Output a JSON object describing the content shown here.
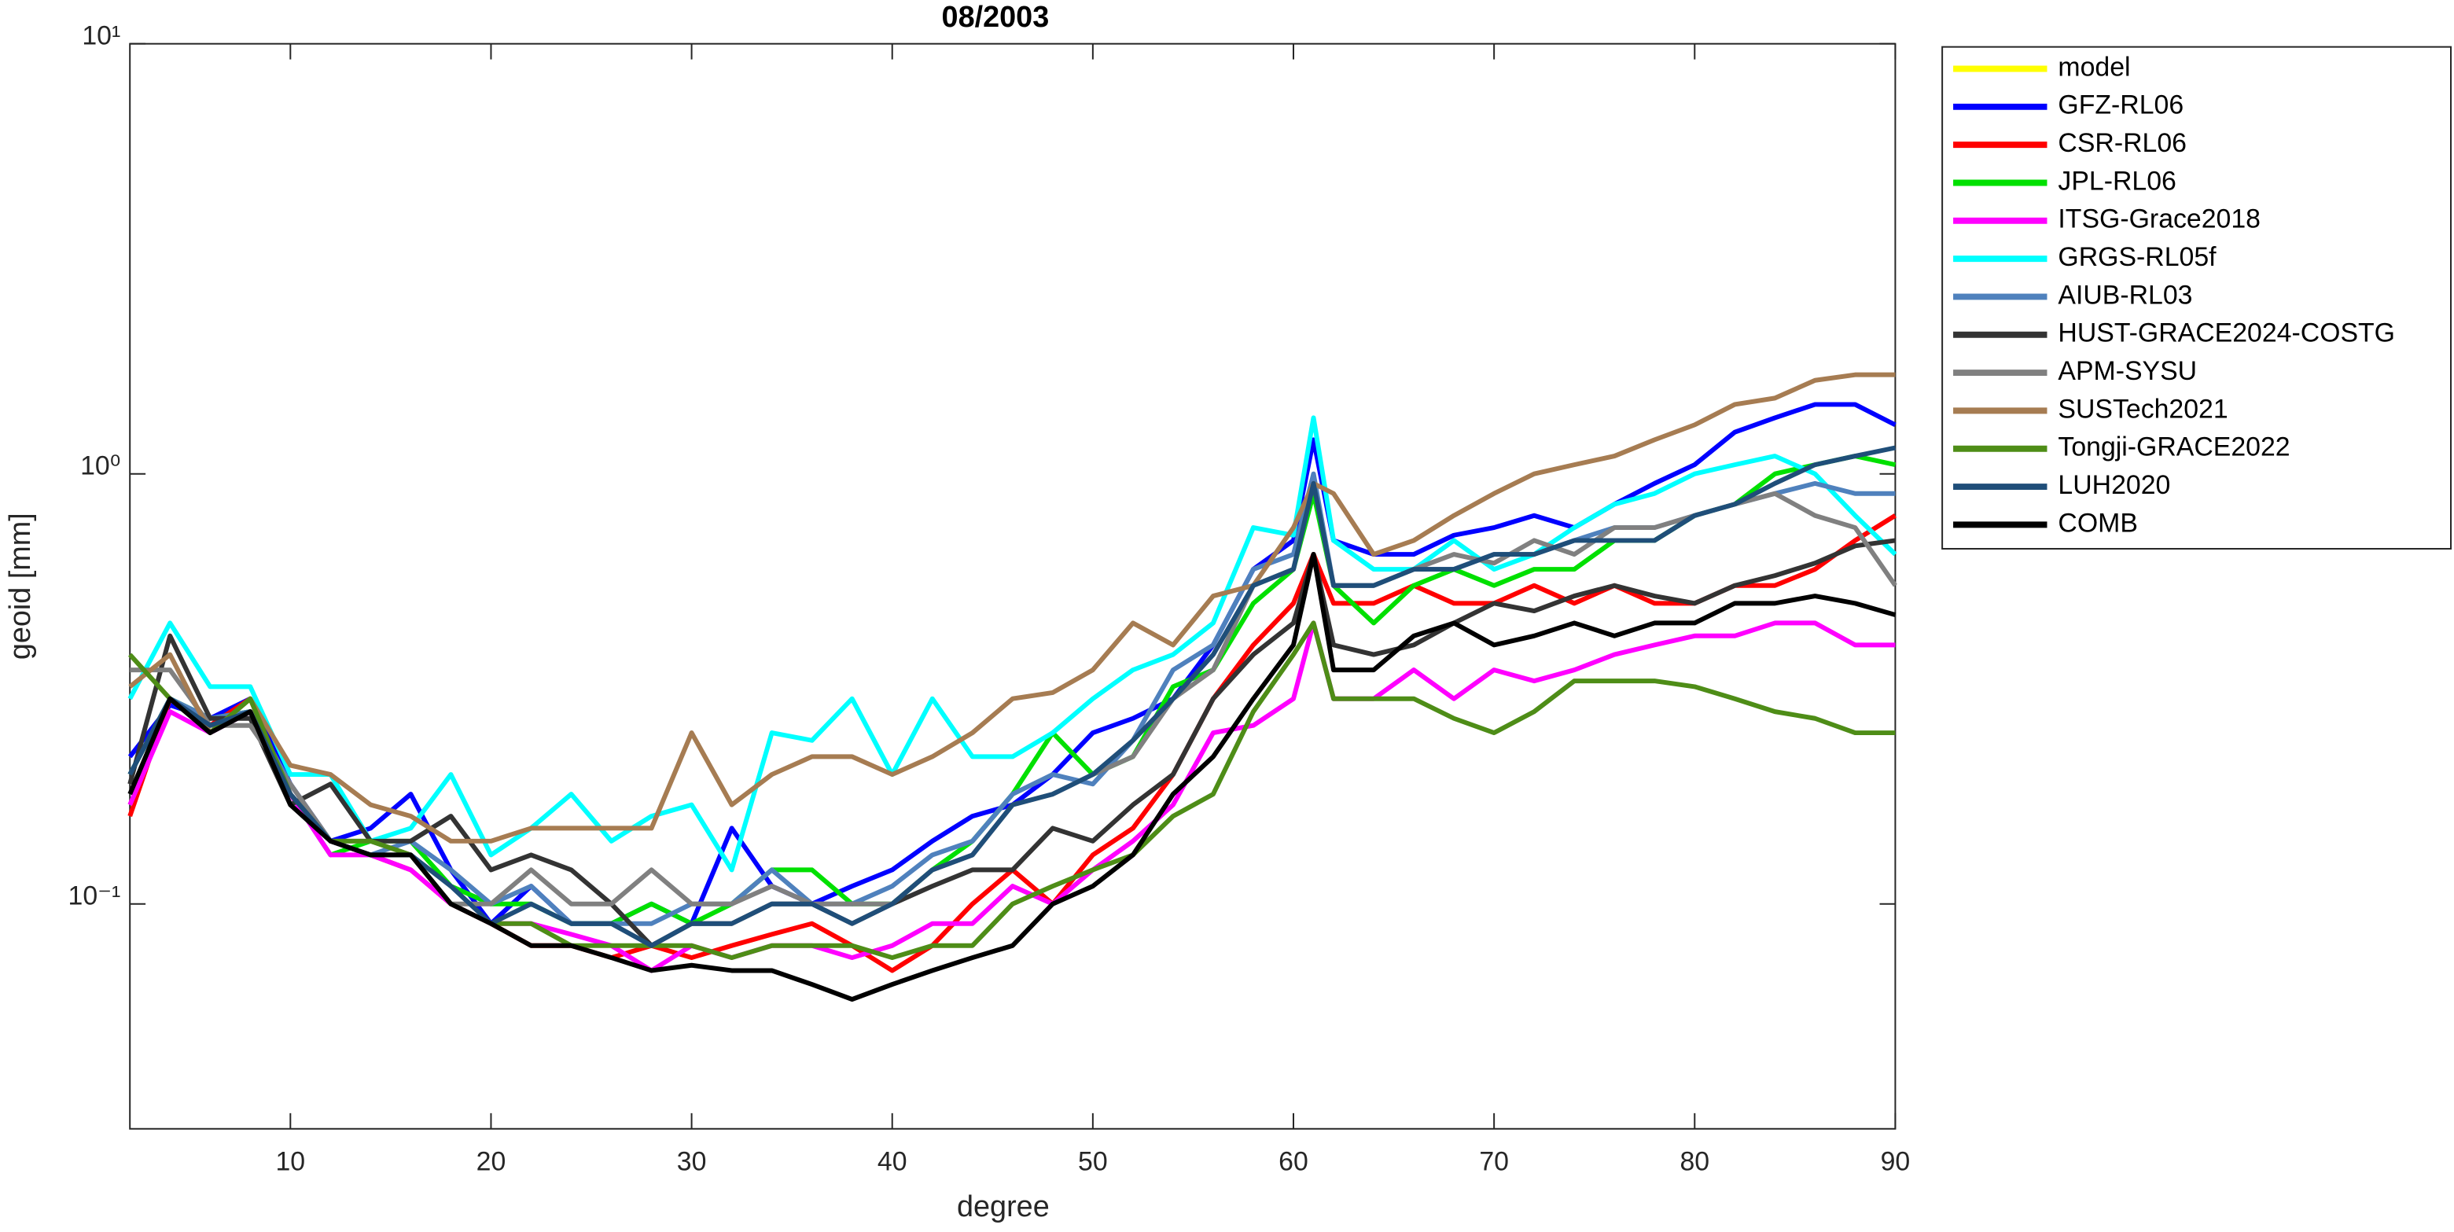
{
  "chart_data": {
    "type": "line",
    "title": "08/2003",
    "x_label": "degree",
    "y_label": "geoid [mm]",
    "log_y": true,
    "xlim": [
      2,
      90
    ],
    "xticks": [
      10,
      20,
      30,
      40,
      50,
      60,
      70,
      80,
      90
    ],
    "ylim": [
      0.03,
      10
    ],
    "yticks": [
      {
        "value": 0.1,
        "label": "10⁻¹"
      },
      {
        "value": 1,
        "label": "10⁰"
      },
      {
        "value": 10,
        "label": "10¹"
      }
    ],
    "legend": "outside-right",
    "x": [
      2,
      4,
      6,
      8,
      10,
      12,
      14,
      16,
      18,
      20,
      22,
      24,
      26,
      28,
      30,
      32,
      34,
      36,
      38,
      40,
      42,
      44,
      46,
      48,
      50,
      52,
      54,
      56,
      58,
      60,
      61,
      62,
      64,
      66,
      68,
      70,
      72,
      74,
      76,
      78,
      80,
      82,
      84,
      86,
      88,
      90
    ],
    "series": [
      {
        "name": "model",
        "color": "#ffff00",
        "values": [
          null,
          null,
          null,
          null,
          null,
          null,
          null,
          null,
          null,
          null,
          null,
          null,
          null,
          null,
          null,
          null,
          null,
          null,
          null,
          null,
          null,
          null,
          null,
          null,
          null,
          null,
          null,
          null,
          null,
          null,
          null,
          null,
          null,
          null,
          null,
          null,
          null,
          null,
          null,
          null,
          null,
          null,
          null,
          null,
          null,
          null
        ]
      },
      {
        "name": "GFZ-RL06",
        "color": "#0000ff",
        "values": [
          0.22,
          0.29,
          0.27,
          0.3,
          0.19,
          0.14,
          0.15,
          0.18,
          0.12,
          0.09,
          0.11,
          0.09,
          0.09,
          0.1,
          0.09,
          0.15,
          0.11,
          0.1,
          0.11,
          0.12,
          0.14,
          0.16,
          0.17,
          0.2,
          0.25,
          0.27,
          0.3,
          0.4,
          0.6,
          0.7,
          1.2,
          0.7,
          0.65,
          0.65,
          0.72,
          0.75,
          0.8,
          0.75,
          0.85,
          0.95,
          1.05,
          1.25,
          1.35,
          1.45,
          1.45,
          1.3
        ]
      },
      {
        "name": "CSR-RL06",
        "color": "#ff0000",
        "values": [
          0.16,
          0.3,
          0.26,
          0.3,
          0.18,
          0.14,
          0.13,
          0.12,
          0.1,
          0.09,
          0.08,
          0.08,
          0.075,
          0.08,
          0.075,
          0.08,
          0.085,
          0.09,
          0.08,
          0.07,
          0.08,
          0.1,
          0.12,
          0.1,
          0.13,
          0.15,
          0.2,
          0.3,
          0.4,
          0.5,
          0.65,
          0.5,
          0.5,
          0.55,
          0.5,
          0.5,
          0.55,
          0.5,
          0.55,
          0.5,
          0.5,
          0.55,
          0.55,
          0.6,
          0.7,
          0.8
        ]
      },
      {
        "name": "JPL-RL06",
        "color": "#00e000",
        "values": [
          0.2,
          0.3,
          0.27,
          0.28,
          0.18,
          0.13,
          0.14,
          0.14,
          0.11,
          0.1,
          0.1,
          0.09,
          0.09,
          0.1,
          0.09,
          0.1,
          0.12,
          0.12,
          0.1,
          0.1,
          0.12,
          0.14,
          0.18,
          0.25,
          0.2,
          0.22,
          0.32,
          0.35,
          0.5,
          0.6,
          0.9,
          0.55,
          0.45,
          0.55,
          0.6,
          0.55,
          0.6,
          0.6,
          0.7,
          0.7,
          0.8,
          0.85,
          1.0,
          1.05,
          1.1,
          1.05
        ]
      },
      {
        "name": "ITSG-Grace2018",
        "color": "#ff00ff",
        "values": [
          0.17,
          0.28,
          0.25,
          0.28,
          0.18,
          0.13,
          0.13,
          0.12,
          0.1,
          0.09,
          0.09,
          0.085,
          0.08,
          0.07,
          0.08,
          0.075,
          0.08,
          0.08,
          0.075,
          0.08,
          0.09,
          0.09,
          0.11,
          0.1,
          0.12,
          0.14,
          0.17,
          0.25,
          0.26,
          0.3,
          0.45,
          0.3,
          0.3,
          0.35,
          0.3,
          0.35,
          0.33,
          0.35,
          0.38,
          0.4,
          0.42,
          0.42,
          0.45,
          0.45,
          0.4,
          0.4
        ]
      },
      {
        "name": "GRGS-RL05f",
        "color": "#00ffff",
        "values": [
          0.3,
          0.45,
          0.32,
          0.32,
          0.2,
          0.2,
          0.14,
          0.15,
          0.2,
          0.13,
          0.15,
          0.18,
          0.14,
          0.16,
          0.17,
          0.12,
          0.25,
          0.24,
          0.3,
          0.2,
          0.3,
          0.22,
          0.22,
          0.25,
          0.3,
          0.35,
          0.38,
          0.45,
          0.75,
          0.72,
          1.35,
          0.7,
          0.6,
          0.6,
          0.7,
          0.6,
          0.65,
          0.75,
          0.85,
          0.9,
          1.0,
          1.05,
          1.1,
          1.0,
          0.8,
          0.65
        ]
      },
      {
        "name": "AIUB-RL03",
        "color": "#4f81bd",
        "values": [
          0.2,
          0.3,
          0.27,
          0.28,
          0.19,
          0.14,
          0.13,
          0.14,
          0.12,
          0.1,
          0.11,
          0.09,
          0.09,
          0.09,
          0.1,
          0.1,
          0.12,
          0.1,
          0.1,
          0.11,
          0.13,
          0.14,
          0.18,
          0.2,
          0.19,
          0.24,
          0.35,
          0.4,
          0.6,
          0.65,
          1.0,
          0.55,
          0.55,
          0.6,
          0.6,
          0.65,
          0.65,
          0.7,
          0.75,
          0.75,
          0.8,
          0.85,
          0.9,
          0.95,
          0.9,
          0.9
        ]
      },
      {
        "name": "HUST-GRACE2024-COSTG",
        "color": "#333333",
        "values": [
          0.19,
          0.42,
          0.27,
          0.27,
          0.17,
          0.19,
          0.14,
          0.14,
          0.16,
          0.12,
          0.13,
          0.12,
          0.1,
          0.08,
          0.09,
          0.09,
          0.1,
          0.1,
          0.09,
          0.1,
          0.11,
          0.12,
          0.12,
          0.15,
          0.14,
          0.17,
          0.2,
          0.3,
          0.38,
          0.45,
          0.65,
          0.4,
          0.38,
          0.4,
          0.45,
          0.5,
          0.48,
          0.52,
          0.55,
          0.52,
          0.5,
          0.55,
          0.58,
          0.62,
          0.68,
          0.7
        ]
      },
      {
        "name": "APM-SYSU",
        "color": "#808080",
        "values": [
          0.35,
          0.35,
          0.26,
          0.26,
          0.19,
          0.14,
          0.14,
          0.13,
          0.1,
          0.1,
          0.12,
          0.1,
          0.1,
          0.12,
          0.1,
          0.1,
          0.11,
          0.1,
          0.1,
          0.1,
          0.12,
          0.13,
          0.17,
          0.18,
          0.2,
          0.22,
          0.3,
          0.35,
          0.55,
          0.6,
          0.95,
          0.55,
          0.55,
          0.6,
          0.65,
          0.62,
          0.7,
          0.65,
          0.75,
          0.75,
          0.8,
          0.85,
          0.9,
          0.8,
          0.75,
          0.55
        ]
      },
      {
        "name": "SUSTech2021",
        "color": "#a67c52",
        "values": [
          0.32,
          0.38,
          0.25,
          0.3,
          0.21,
          0.2,
          0.17,
          0.16,
          0.14,
          0.14,
          0.15,
          0.15,
          0.15,
          0.15,
          0.25,
          0.17,
          0.2,
          0.22,
          0.22,
          0.2,
          0.22,
          0.25,
          0.3,
          0.31,
          0.35,
          0.45,
          0.4,
          0.52,
          0.55,
          0.75,
          0.95,
          0.9,
          0.65,
          0.7,
          0.8,
          0.9,
          1.0,
          1.05,
          1.1,
          1.2,
          1.3,
          1.45,
          1.5,
          1.65,
          1.7,
          1.7
        ]
      },
      {
        "name": "Tongji-GRACE2022",
        "color": "#4e8d17",
        "values": [
          0.38,
          0.3,
          0.25,
          0.3,
          0.18,
          0.14,
          0.14,
          0.13,
          0.1,
          0.09,
          0.09,
          0.08,
          0.08,
          0.08,
          0.08,
          0.075,
          0.08,
          0.08,
          0.08,
          0.075,
          0.08,
          0.08,
          0.1,
          0.11,
          0.12,
          0.13,
          0.16,
          0.18,
          0.28,
          0.38,
          0.45,
          0.3,
          0.3,
          0.3,
          0.27,
          0.25,
          0.28,
          0.33,
          0.33,
          0.33,
          0.32,
          0.3,
          0.28,
          0.27,
          0.25,
          0.25
        ]
      },
      {
        "name": "LUH2020",
        "color": "#1f4e79",
        "values": [
          0.2,
          0.3,
          0.26,
          0.28,
          0.18,
          0.14,
          0.13,
          0.13,
          0.11,
          0.09,
          0.1,
          0.09,
          0.09,
          0.08,
          0.09,
          0.09,
          0.1,
          0.1,
          0.09,
          0.1,
          0.12,
          0.13,
          0.17,
          0.18,
          0.2,
          0.24,
          0.3,
          0.38,
          0.55,
          0.6,
          0.95,
          0.55,
          0.55,
          0.6,
          0.6,
          0.65,
          0.65,
          0.7,
          0.7,
          0.7,
          0.8,
          0.85,
          0.95,
          1.05,
          1.1,
          1.15
        ]
      },
      {
        "name": "COMB",
        "color": "#000000",
        "values": [
          0.18,
          0.3,
          0.25,
          0.28,
          0.17,
          0.14,
          0.13,
          0.13,
          0.1,
          0.09,
          0.08,
          0.08,
          0.075,
          0.07,
          0.072,
          0.07,
          0.07,
          0.065,
          0.06,
          0.065,
          0.07,
          0.075,
          0.08,
          0.1,
          0.11,
          0.13,
          0.18,
          0.22,
          0.3,
          0.4,
          0.65,
          0.35,
          0.35,
          0.42,
          0.45,
          0.4,
          0.42,
          0.45,
          0.42,
          0.45,
          0.45,
          0.5,
          0.5,
          0.52,
          0.5,
          0.47
        ]
      }
    ]
  }
}
